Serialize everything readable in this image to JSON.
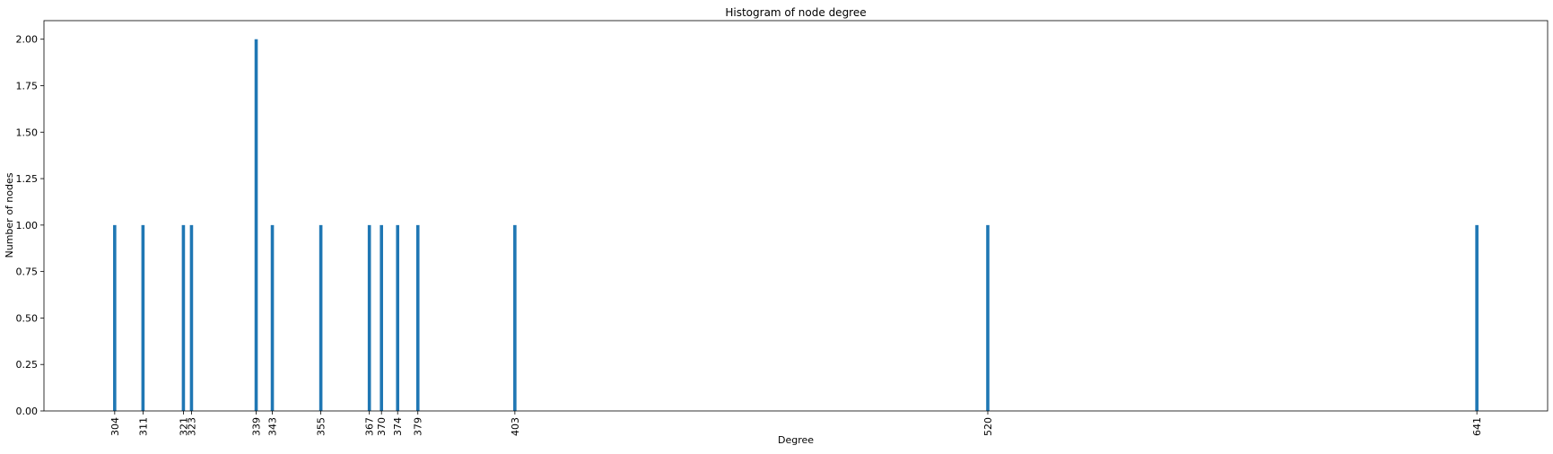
{
  "chart_data": {
    "type": "bar",
    "title": "Histogram of node degree",
    "xlabel": "Degree",
    "ylabel": "Number of nodes",
    "xlim": [
      286.5,
      658.5
    ],
    "ylim": [
      0,
      2.1
    ],
    "bar_color": "#1f77b4",
    "x": [
      304,
      311,
      321,
      323,
      339,
      343,
      355,
      367,
      370,
      374,
      379,
      403,
      520,
      641
    ],
    "values": [
      1,
      1,
      1,
      1,
      2,
      1,
      1,
      1,
      1,
      1,
      1,
      1,
      1,
      1
    ],
    "xtick_labels": [
      "304",
      "311",
      "321",
      "323",
      "339",
      "343",
      "355",
      "367",
      "370",
      "374",
      "379",
      "403",
      "520",
      "641"
    ],
    "yticks": [
      0,
      0.25,
      0.5,
      0.75,
      1.0,
      1.25,
      1.5,
      1.75,
      2.0
    ],
    "ytick_labels": [
      "0.00",
      "0.25",
      "0.50",
      "0.75",
      "1.00",
      "1.25",
      "1.50",
      "1.75",
      "2.00"
    ],
    "grid": false,
    "legend": "none"
  }
}
